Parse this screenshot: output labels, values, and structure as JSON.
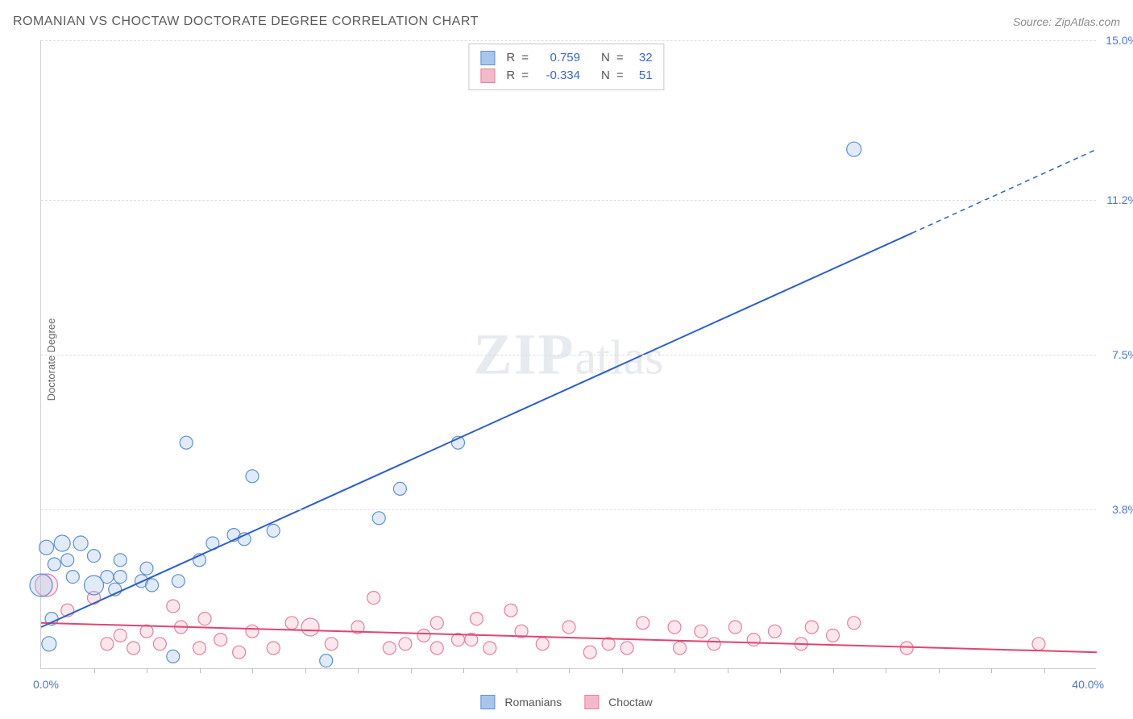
{
  "header": {
    "title": "ROMANIAN VS CHOCTAW DOCTORATE DEGREE CORRELATION CHART",
    "source_prefix": "Source: ",
    "source_name": "ZipAtlas.com"
  },
  "watermark": {
    "zip": "ZIP",
    "atlas": "atlas"
  },
  "ylabel": "Doctorate Degree",
  "axes": {
    "xlim": [
      0,
      40
    ],
    "ylim": [
      0,
      15
    ],
    "x_min_label": "0.0%",
    "x_max_label": "40.0%",
    "y_tick_values": [
      3.8,
      7.5,
      11.2,
      15.0
    ],
    "y_tick_labels": [
      "3.8%",
      "7.5%",
      "11.2%",
      "15.0%"
    ],
    "x_minor_tick_step": 2.0
  },
  "styling": {
    "grid_color": "#dddddd",
    "axis_color": "#d0d0d0",
    "background_color": "#ffffff",
    "label_color": "#4a74d8",
    "marker_stroke_width": 1.2,
    "marker_fill_opacity": 0.35,
    "line_width": 2
  },
  "series": {
    "romanians": {
      "label": "Romanians",
      "fill": "#a8c6ec",
      "stroke": "#5d8fd6",
      "line_color": "#2a5fc9",
      "R": "0.759",
      "N": "32",
      "line": {
        "x1": 0,
        "y1": 1.0,
        "x2": 33,
        "y2": 10.4,
        "ext_x2": 40,
        "ext_y2": 12.4
      },
      "points": [
        {
          "x": 0.2,
          "y": 2.9,
          "r": 9
        },
        {
          "x": 0.5,
          "y": 2.5,
          "r": 8
        },
        {
          "x": 0.8,
          "y": 3.0,
          "r": 10
        },
        {
          "x": 0.3,
          "y": 0.6,
          "r": 9
        },
        {
          "x": 0.4,
          "y": 1.2,
          "r": 8
        },
        {
          "x": 1.0,
          "y": 2.6,
          "r": 8
        },
        {
          "x": 1.5,
          "y": 3.0,
          "r": 9
        },
        {
          "x": 1.2,
          "y": 2.2,
          "r": 8
        },
        {
          "x": 2.0,
          "y": 2.0,
          "r": 12
        },
        {
          "x": 2.0,
          "y": 2.7,
          "r": 8
        },
        {
          "x": 2.5,
          "y": 2.2,
          "r": 8
        },
        {
          "x": 2.8,
          "y": 1.9,
          "r": 8
        },
        {
          "x": 3.0,
          "y": 2.2,
          "r": 8
        },
        {
          "x": 3.0,
          "y": 2.6,
          "r": 8
        },
        {
          "x": 3.8,
          "y": 2.1,
          "r": 8
        },
        {
          "x": 4.0,
          "y": 2.4,
          "r": 8
        },
        {
          "x": 4.2,
          "y": 2.0,
          "r": 8
        },
        {
          "x": 5.2,
          "y": 2.1,
          "r": 8
        },
        {
          "x": 5.5,
          "y": 5.4,
          "r": 8
        },
        {
          "x": 6.0,
          "y": 2.6,
          "r": 8
        },
        {
          "x": 6.5,
          "y": 3.0,
          "r": 8
        },
        {
          "x": 7.3,
          "y": 3.2,
          "r": 8
        },
        {
          "x": 7.7,
          "y": 3.1,
          "r": 8
        },
        {
          "x": 8.0,
          "y": 4.6,
          "r": 8
        },
        {
          "x": 8.8,
          "y": 3.3,
          "r": 8
        },
        {
          "x": 10.8,
          "y": 0.2,
          "r": 8
        },
        {
          "x": 12.8,
          "y": 3.6,
          "r": 8
        },
        {
          "x": 13.6,
          "y": 4.3,
          "r": 8
        },
        {
          "x": 15.8,
          "y": 5.4,
          "r": 8
        },
        {
          "x": 5.0,
          "y": 0.3,
          "r": 8
        },
        {
          "x": 0.0,
          "y": 2.0,
          "r": 14
        },
        {
          "x": 30.8,
          "y": 12.4,
          "r": 9
        }
      ]
    },
    "choctaw": {
      "label": "Choctaw",
      "fill": "#f4b9c9",
      "stroke": "#e67fa0",
      "line_color": "#e2446f",
      "R": "-0.334",
      "N": "51",
      "line": {
        "x1": 0,
        "y1": 1.1,
        "x2": 40,
        "y2": 0.4
      },
      "points": [
        {
          "x": 0.2,
          "y": 2.0,
          "r": 14
        },
        {
          "x": 1.0,
          "y": 1.4,
          "r": 8
        },
        {
          "x": 2.0,
          "y": 1.7,
          "r": 8
        },
        {
          "x": 2.5,
          "y": 0.6,
          "r": 8
        },
        {
          "x": 3.0,
          "y": 0.8,
          "r": 8
        },
        {
          "x": 3.5,
          "y": 0.5,
          "r": 8
        },
        {
          "x": 4.0,
          "y": 0.9,
          "r": 8
        },
        {
          "x": 4.5,
          "y": 0.6,
          "r": 8
        },
        {
          "x": 5.0,
          "y": 1.5,
          "r": 8
        },
        {
          "x": 5.3,
          "y": 1.0,
          "r": 8
        },
        {
          "x": 6.0,
          "y": 0.5,
          "r": 8
        },
        {
          "x": 6.2,
          "y": 1.2,
          "r": 8
        },
        {
          "x": 6.8,
          "y": 0.7,
          "r": 8
        },
        {
          "x": 7.5,
          "y": 0.4,
          "r": 8
        },
        {
          "x": 8.0,
          "y": 0.9,
          "r": 8
        },
        {
          "x": 8.8,
          "y": 0.5,
          "r": 8
        },
        {
          "x": 9.5,
          "y": 1.1,
          "r": 8
        },
        {
          "x": 10.2,
          "y": 1.0,
          "r": 11
        },
        {
          "x": 11.0,
          "y": 0.6,
          "r": 8
        },
        {
          "x": 12.0,
          "y": 1.0,
          "r": 8
        },
        {
          "x": 12.6,
          "y": 1.7,
          "r": 8
        },
        {
          "x": 13.2,
          "y": 0.5,
          "r": 8
        },
        {
          "x": 13.8,
          "y": 0.6,
          "r": 8
        },
        {
          "x": 14.5,
          "y": 0.8,
          "r": 8
        },
        {
          "x": 15.0,
          "y": 0.5,
          "r": 8
        },
        {
          "x": 15.0,
          "y": 1.1,
          "r": 8
        },
        {
          "x": 15.8,
          "y": 0.7,
          "r": 8
        },
        {
          "x": 16.3,
          "y": 0.7,
          "r": 8
        },
        {
          "x": 16.5,
          "y": 1.2,
          "r": 8
        },
        {
          "x": 17.0,
          "y": 0.5,
          "r": 8
        },
        {
          "x": 17.8,
          "y": 1.4,
          "r": 8
        },
        {
          "x": 18.2,
          "y": 0.9,
          "r": 8
        },
        {
          "x": 19.0,
          "y": 0.6,
          "r": 8
        },
        {
          "x": 20.0,
          "y": 1.0,
          "r": 8
        },
        {
          "x": 20.8,
          "y": 0.4,
          "r": 8
        },
        {
          "x": 21.5,
          "y": 0.6,
          "r": 8
        },
        {
          "x": 22.2,
          "y": 0.5,
          "r": 8
        },
        {
          "x": 22.8,
          "y": 1.1,
          "r": 8
        },
        {
          "x": 24.0,
          "y": 1.0,
          "r": 8
        },
        {
          "x": 24.2,
          "y": 0.5,
          "r": 8
        },
        {
          "x": 25.0,
          "y": 0.9,
          "r": 8
        },
        {
          "x": 25.5,
          "y": 0.6,
          "r": 8
        },
        {
          "x": 26.3,
          "y": 1.0,
          "r": 8
        },
        {
          "x": 27.0,
          "y": 0.7,
          "r": 8
        },
        {
          "x": 27.8,
          "y": 0.9,
          "r": 8
        },
        {
          "x": 28.8,
          "y": 0.6,
          "r": 8
        },
        {
          "x": 29.2,
          "y": 1.0,
          "r": 8
        },
        {
          "x": 30.0,
          "y": 0.8,
          "r": 8
        },
        {
          "x": 30.8,
          "y": 1.1,
          "r": 8
        },
        {
          "x": 32.8,
          "y": 0.5,
          "r": 8
        },
        {
          "x": 37.8,
          "y": 0.6,
          "r": 8
        }
      ]
    }
  },
  "legend_stats_labels": {
    "R": "R",
    "eq": "=",
    "N": "N"
  },
  "bottom_legend": {
    "series1": "Romanians",
    "series2": "Choctaw"
  }
}
